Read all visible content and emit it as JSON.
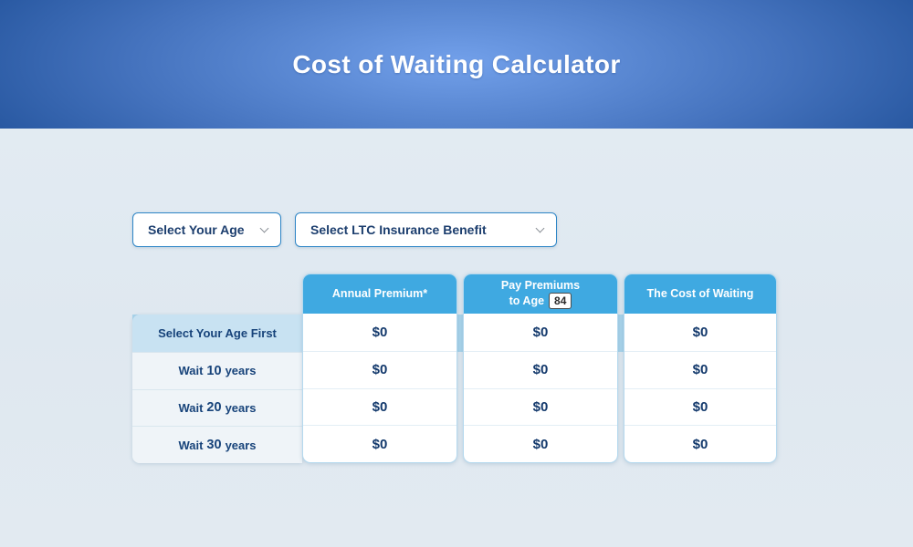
{
  "header": {
    "title": "Cost of Waiting Calculator"
  },
  "controls": {
    "age_select": {
      "value": "Select Your Age"
    },
    "benefit_select": {
      "value": "Select LTC Insurance Benefit"
    }
  },
  "table": {
    "columns": [
      {
        "label": "Annual Premium*"
      },
      {
        "label_line1": "Pay Premiums",
        "label_line2": "to Age",
        "age_value": "84"
      },
      {
        "label": "The Cost of Waiting"
      }
    ],
    "rows": [
      {
        "label": "Select Your Age First",
        "values": [
          "$0",
          "$0",
          "$0"
        ]
      },
      {
        "label_prefix": "Wait",
        "label_number": "10",
        "label_suffix": "years",
        "values": [
          "$0",
          "$0",
          "$0"
        ]
      },
      {
        "label_prefix": "Wait",
        "label_number": "20",
        "label_suffix": "years",
        "values": [
          "$0",
          "$0",
          "$0"
        ]
      },
      {
        "label_prefix": "Wait",
        "label_number": "30",
        "label_suffix": "years",
        "values": [
          "$0",
          "$0",
          "$0"
        ]
      }
    ]
  },
  "colors": {
    "banner_center": "#72a0ea",
    "banner_edge": "#17498f",
    "column_header": "#3fa9e1",
    "row_highlight": "#c8e2f2",
    "row_default": "#eff4f8",
    "text_navy": "#17437a",
    "dropdown_border": "#2d85c6",
    "page_background": "#e1eaf1"
  }
}
